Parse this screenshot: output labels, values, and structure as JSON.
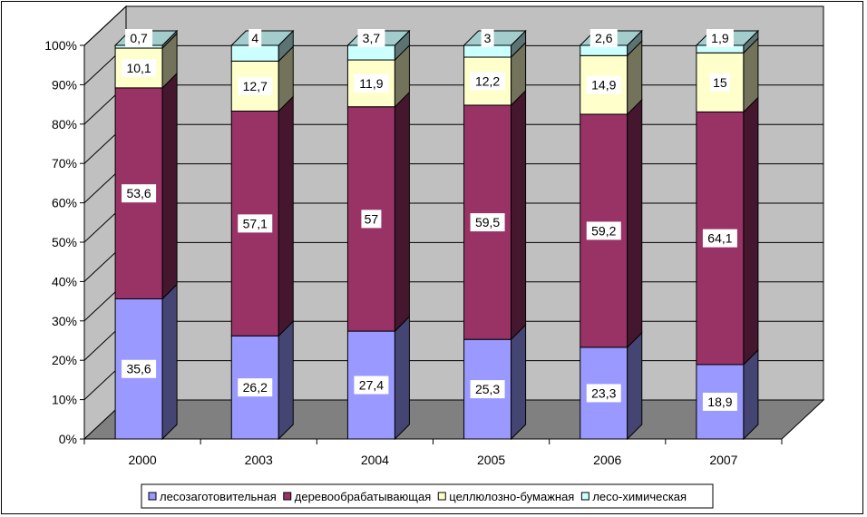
{
  "chart_data": {
    "type": "bar",
    "stacked": true,
    "percent": true,
    "three_d": true,
    "categories": [
      "2000",
      "2003",
      "2004",
      "2005",
      "2006",
      "2007"
    ],
    "series": [
      {
        "name": "лесозаготовительная",
        "color": "#9999ff",
        "values": [
          35.6,
          26.2,
          27.4,
          25.3,
          23.3,
          18.9
        ]
      },
      {
        "name": "деревообрабатывающая",
        "color": "#993366",
        "values": [
          53.6,
          57.1,
          57,
          59.5,
          59.2,
          64.1
        ]
      },
      {
        "name": "целлюлозно-бумажная",
        "color": "#ffffcc",
        "values": [
          10.1,
          12.7,
          11.9,
          12.2,
          14.9,
          15
        ]
      },
      {
        "name": "лесо-химическая",
        "color": "#ccffff",
        "values": [
          0.7,
          4,
          3.7,
          3,
          2.6,
          1.9
        ]
      }
    ],
    "data_labels": [
      [
        "35,6",
        "26,2",
        "27,4",
        "25,3",
        "23,3",
        "18,9"
      ],
      [
        "53,6",
        "57,1",
        "57",
        "59,5",
        "59,2",
        "64,1"
      ],
      [
        "10,1",
        "12,7",
        "11,9",
        "12,2",
        "14,9",
        "15"
      ],
      [
        "0,7",
        "4",
        "3,7",
        "3",
        "2,6",
        "1,9"
      ]
    ],
    "yticks": [
      "0%",
      "10%",
      "20%",
      "30%",
      "40%",
      "50%",
      "60%",
      "70%",
      "80%",
      "90%",
      "100%"
    ],
    "ylim": [
      0,
      100
    ],
    "legend_position": "bottom",
    "wall_color": "#c0c0c0",
    "floor_color": "#808080"
  }
}
